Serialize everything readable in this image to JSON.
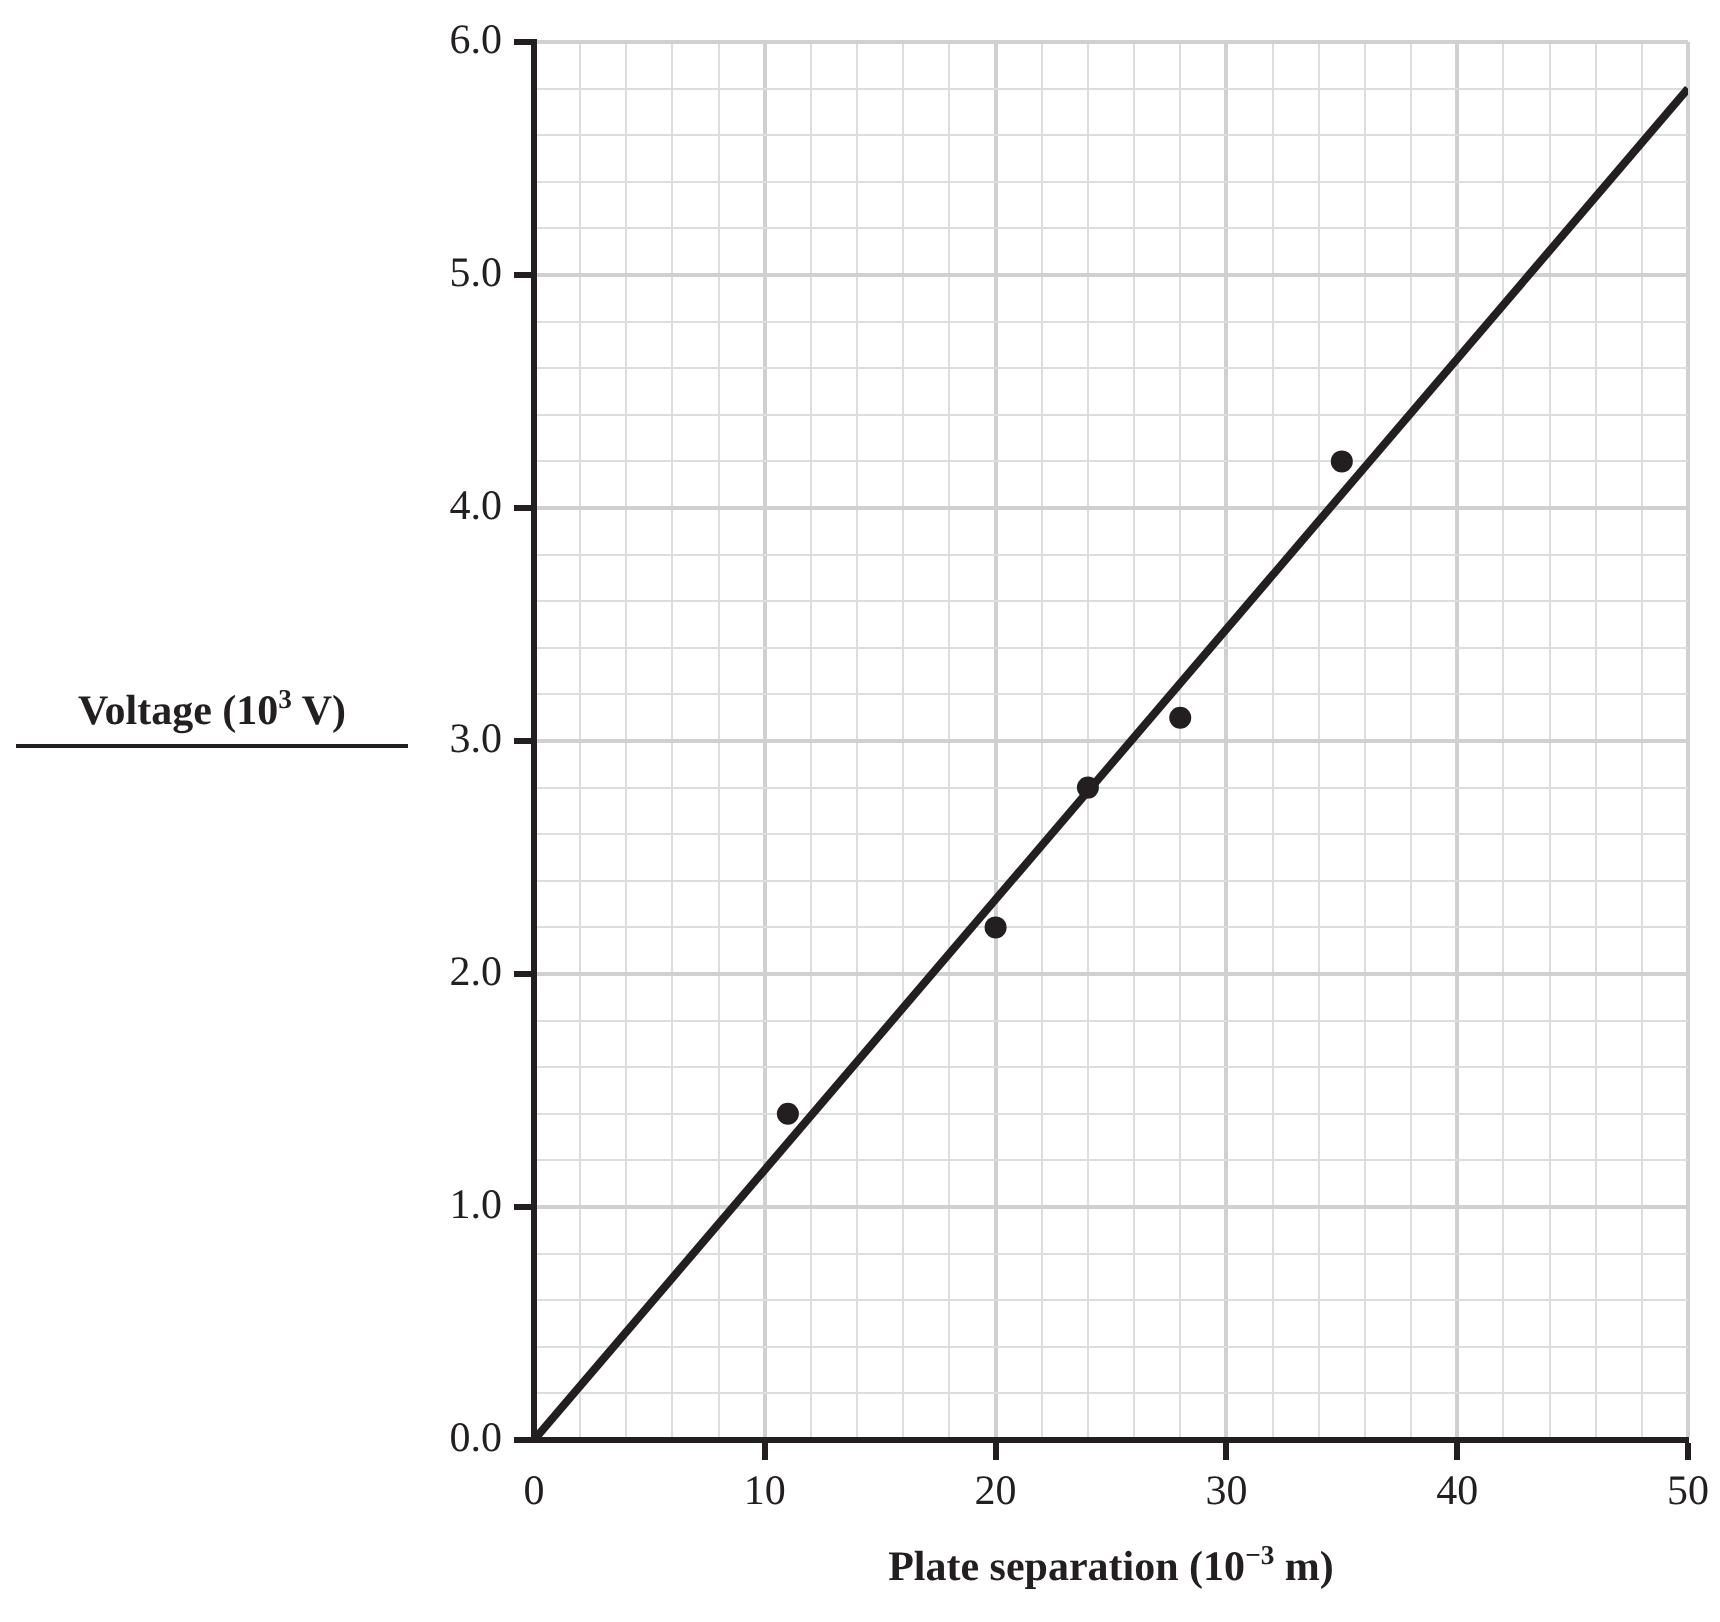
{
  "chart_data": {
    "type": "scatter",
    "xlabel": "Plate separation (10$^{−3}$ m)",
    "ylabel": "Voltage (10$^{3}$ V)",
    "series": [
      {
        "color": "#231f20",
        "x": [
          11,
          20,
          24,
          28,
          35
        ],
        "values": [
          1.4,
          2.2,
          2.8,
          3.1,
          4.2
        ],
        "marker": "circle"
      },
      {
        "type": "line",
        "color": "#231f20",
        "x": [
          0,
          50
        ],
        "values": [
          0,
          5.8
        ],
        "marker": "none",
        "line_style": "solid"
      }
    ],
    "xlim": [
      0,
      50
    ],
    "xticks": [
      0,
      {
        "value": 2,
        "label": null
      },
      {
        "value": 4,
        "label": null
      },
      {
        "value": 6,
        "label": null
      },
      {
        "value": 8,
        "label": null
      },
      10,
      {
        "value": 12,
        "label": null
      },
      {
        "value": 14,
        "label": null
      },
      {
        "value": 16,
        "label": null
      },
      {
        "value": 18,
        "label": null
      },
      20,
      {
        "value": 22,
        "label": null
      },
      {
        "value": 24,
        "label": null
      },
      {
        "value": 26,
        "label": null
      },
      {
        "value": 28,
        "label": null
      },
      30,
      {
        "value": 32,
        "label": null
      },
      {
        "value": 34,
        "label": null
      },
      {
        "value": 36,
        "label": null
      },
      {
        "value": 38,
        "label": null
      },
      40,
      {
        "value": 42,
        "label": null
      },
      {
        "value": 44,
        "label": null
      },
      {
        "value": 46,
        "label": null
      },
      {
        "value": 48,
        "label": null
      },
      50
    ],
    "ylim": [
      0,
      6
    ],
    "yticks": [
      {
        "value": 0,
        "label": "0.0"
      },
      {
        "value": 0.2,
        "label": null
      },
      {
        "value": 0.4,
        "label": null
      },
      {
        "value": 0.6,
        "label": null
      },
      {
        "value": 0.8,
        "label": null
      },
      {
        "value": 1,
        "label": "1.0"
      },
      {
        "value": 1.2,
        "label": null
      },
      {
        "value": 1.4,
        "label": null
      },
      {
        "value": 1.6,
        "label": null
      },
      {
        "value": 1.8,
        "label": null
      },
      {
        "value": 2,
        "label": "2.0"
      },
      {
        "value": 2.2,
        "label": null
      },
      {
        "value": 2.4,
        "label": null
      },
      {
        "value": 2.6,
        "label": null
      },
      {
        "value": 2.8,
        "label": null
      },
      {
        "value": 3,
        "label": "3.0"
      },
      {
        "value": 3.2,
        "label": null
      },
      {
        "value": 3.4,
        "label": null
      },
      {
        "value": 3.6,
        "label": null
      },
      {
        "value": 3.8,
        "label": null
      },
      {
        "value": 4,
        "label": "4.0"
      },
      {
        "value": 4.2,
        "label": null
      },
      {
        "value": 4.4,
        "label": null
      },
      {
        "value": 4.6,
        "label": null
      },
      {
        "value": 4.8,
        "label": null
      },
      {
        "value": 5,
        "label": "5.0"
      },
      {
        "value": 5.2,
        "label": null
      },
      {
        "value": 5.4,
        "label": null
      },
      {
        "value": 5.6,
        "label": null
      },
      {
        "value": 5.8,
        "label": null
      },
      {
        "value": 6,
        "label": "6.0"
      }
    ],
    "grid": true,
    "legend": false
  }
}
